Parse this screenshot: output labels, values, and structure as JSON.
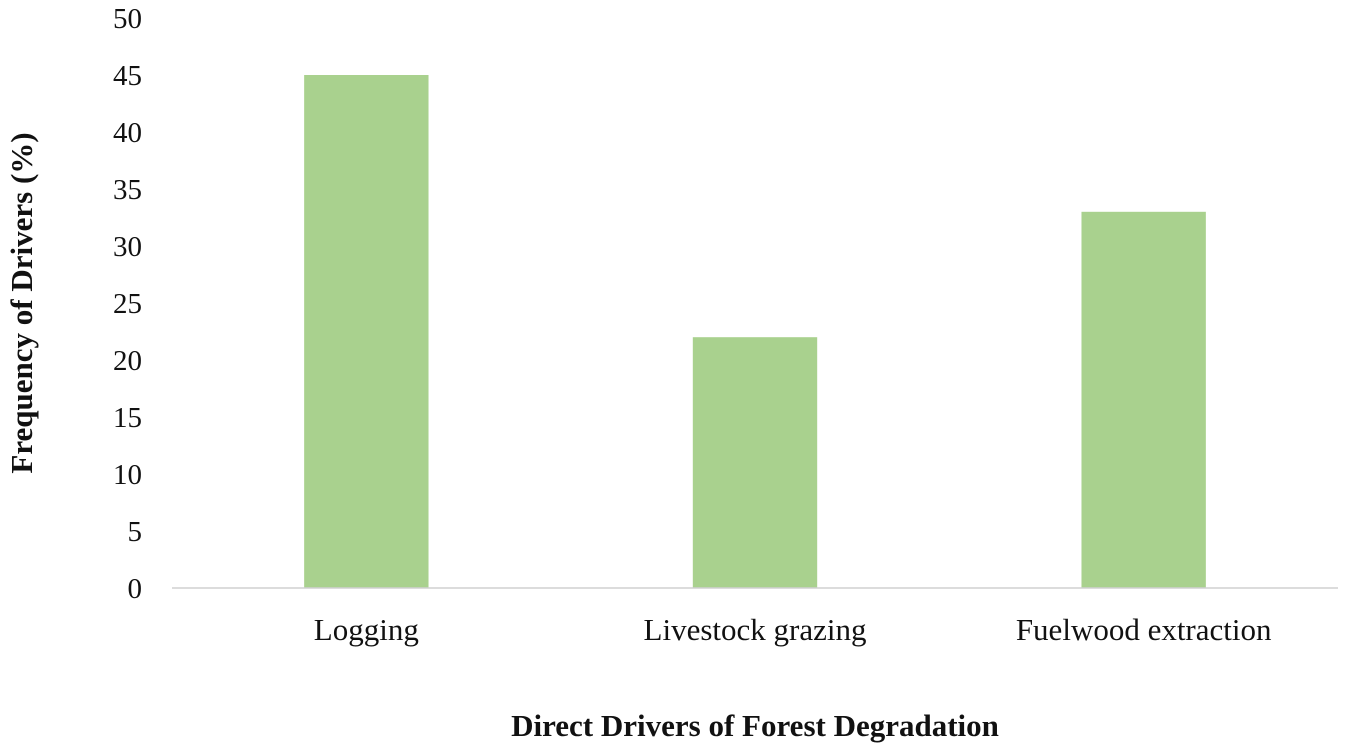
{
  "chart_data": {
    "type": "bar",
    "categories": [
      "Logging",
      "Livestock grazing",
      "Fuelwood extraction"
    ],
    "values": [
      45,
      22,
      33
    ],
    "title": "",
    "xlabel": "Direct Drivers of Forest Degradation",
    "ylabel": "Frequency of Drivers (%)",
    "ylim": [
      0,
      50
    ],
    "yticks": [
      "0",
      "5",
      "10",
      "15",
      "20",
      "25",
      "30",
      "35",
      "40",
      "45",
      "50"
    ],
    "grid": false,
    "legend": "none",
    "bar_color": "#a9d18e"
  }
}
